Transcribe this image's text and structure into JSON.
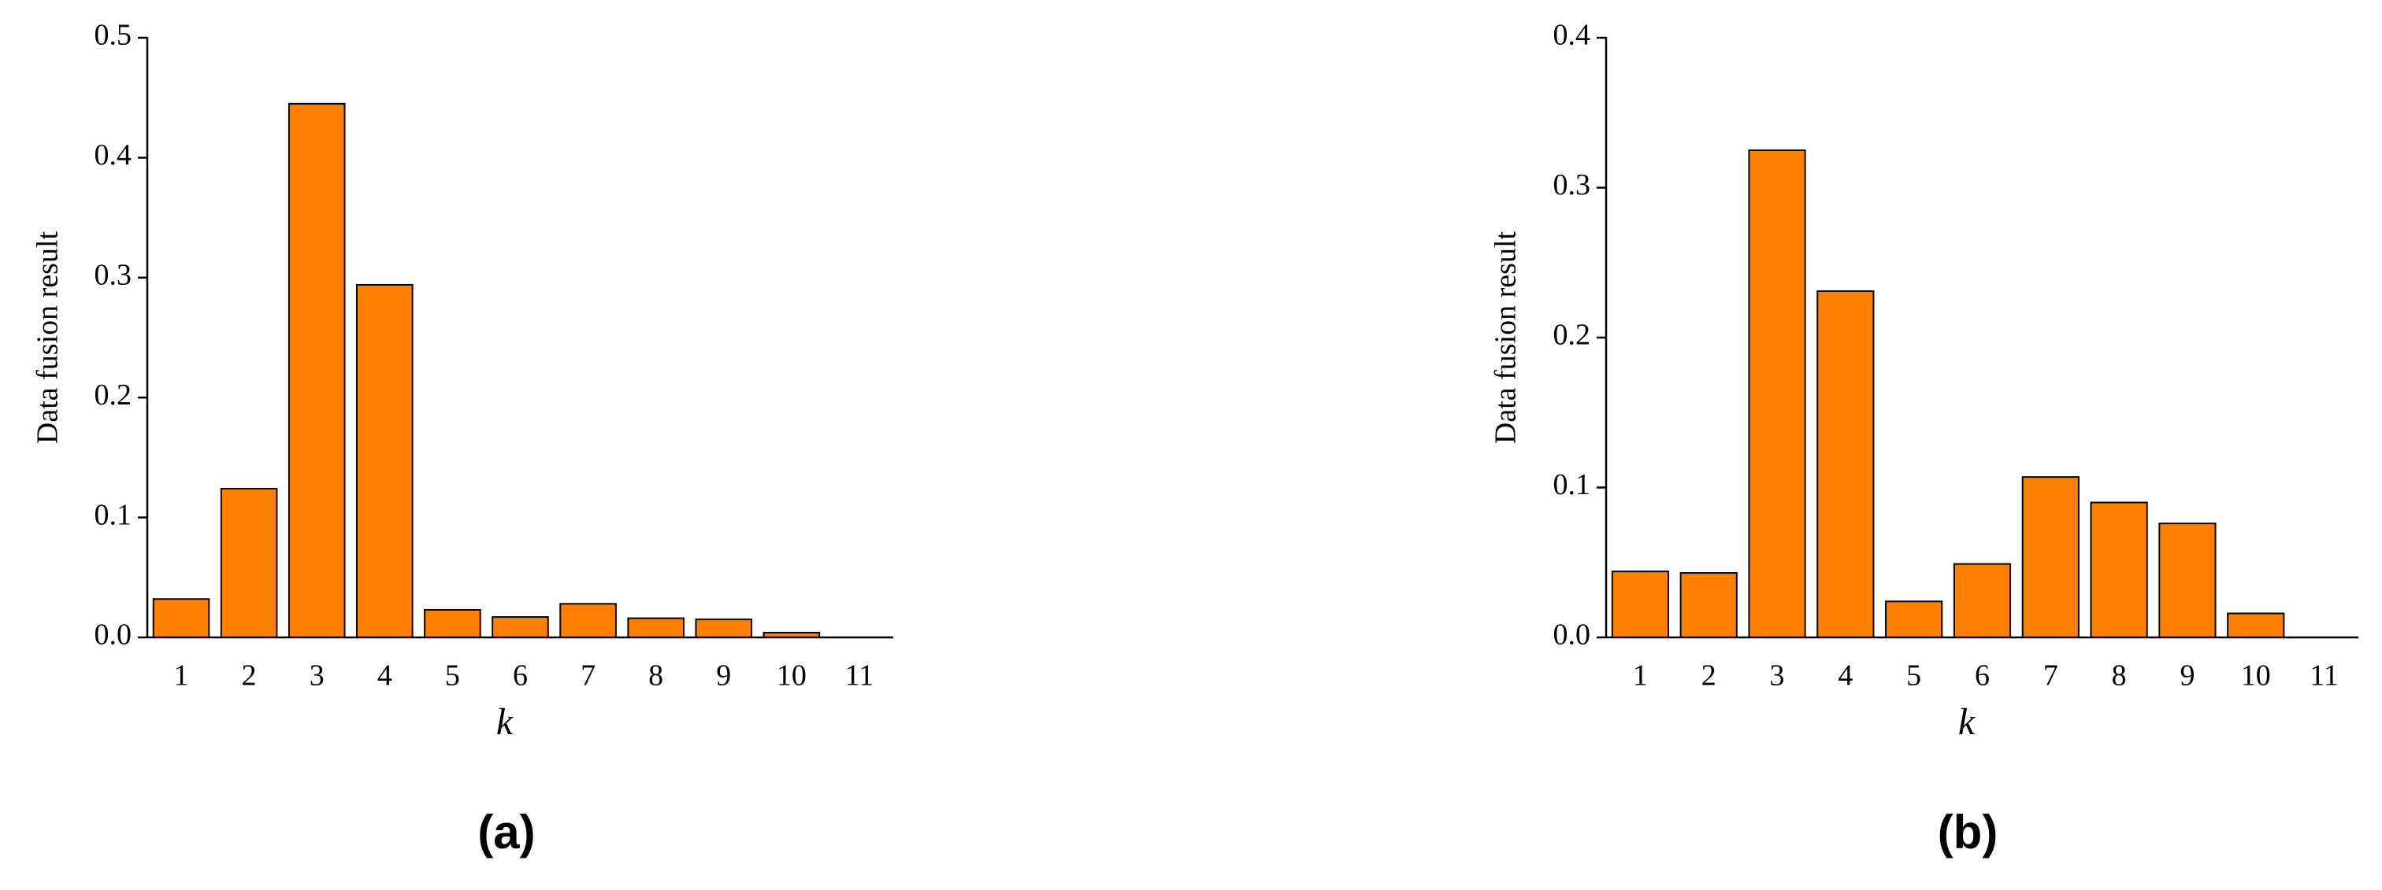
{
  "chart_data": [
    {
      "type": "bar",
      "caption": "(a)",
      "ylabel": "Data fusion result",
      "xlabel": "k",
      "categories": [
        "1",
        "2",
        "3",
        "4",
        "5",
        "6",
        "7",
        "8",
        "9",
        "10",
        "11"
      ],
      "values": [
        0.032,
        0.124,
        0.445,
        0.294,
        0.023,
        0.017,
        0.028,
        0.016,
        0.015,
        0.004,
        0
      ],
      "color": "#ff8000",
      "ylim": [
        0,
        0.5
      ],
      "yticks": [
        {
          "value": 0,
          "label": "0.0"
        },
        0.1,
        0.2,
        0.3,
        0.4,
        0.5
      ]
    },
    {
      "type": "bar",
      "caption": "(b)",
      "ylabel": "Data fusion result",
      "xlabel": "k",
      "categories": [
        "1",
        "2",
        "3",
        "4",
        "5",
        "6",
        "7",
        "8",
        "9",
        "10",
        "11"
      ],
      "values": [
        0.044,
        0.043,
        0.325,
        0.231,
        0.024,
        0.049,
        0.107,
        0.09,
        0.076,
        0.016,
        0
      ],
      "color": "#ff8000",
      "ylim": [
        0,
        0.4
      ],
      "yticks": [
        {
          "value": 0,
          "label": "0.0"
        },
        0.1,
        0.2,
        0.3,
        0.4
      ]
    }
  ]
}
